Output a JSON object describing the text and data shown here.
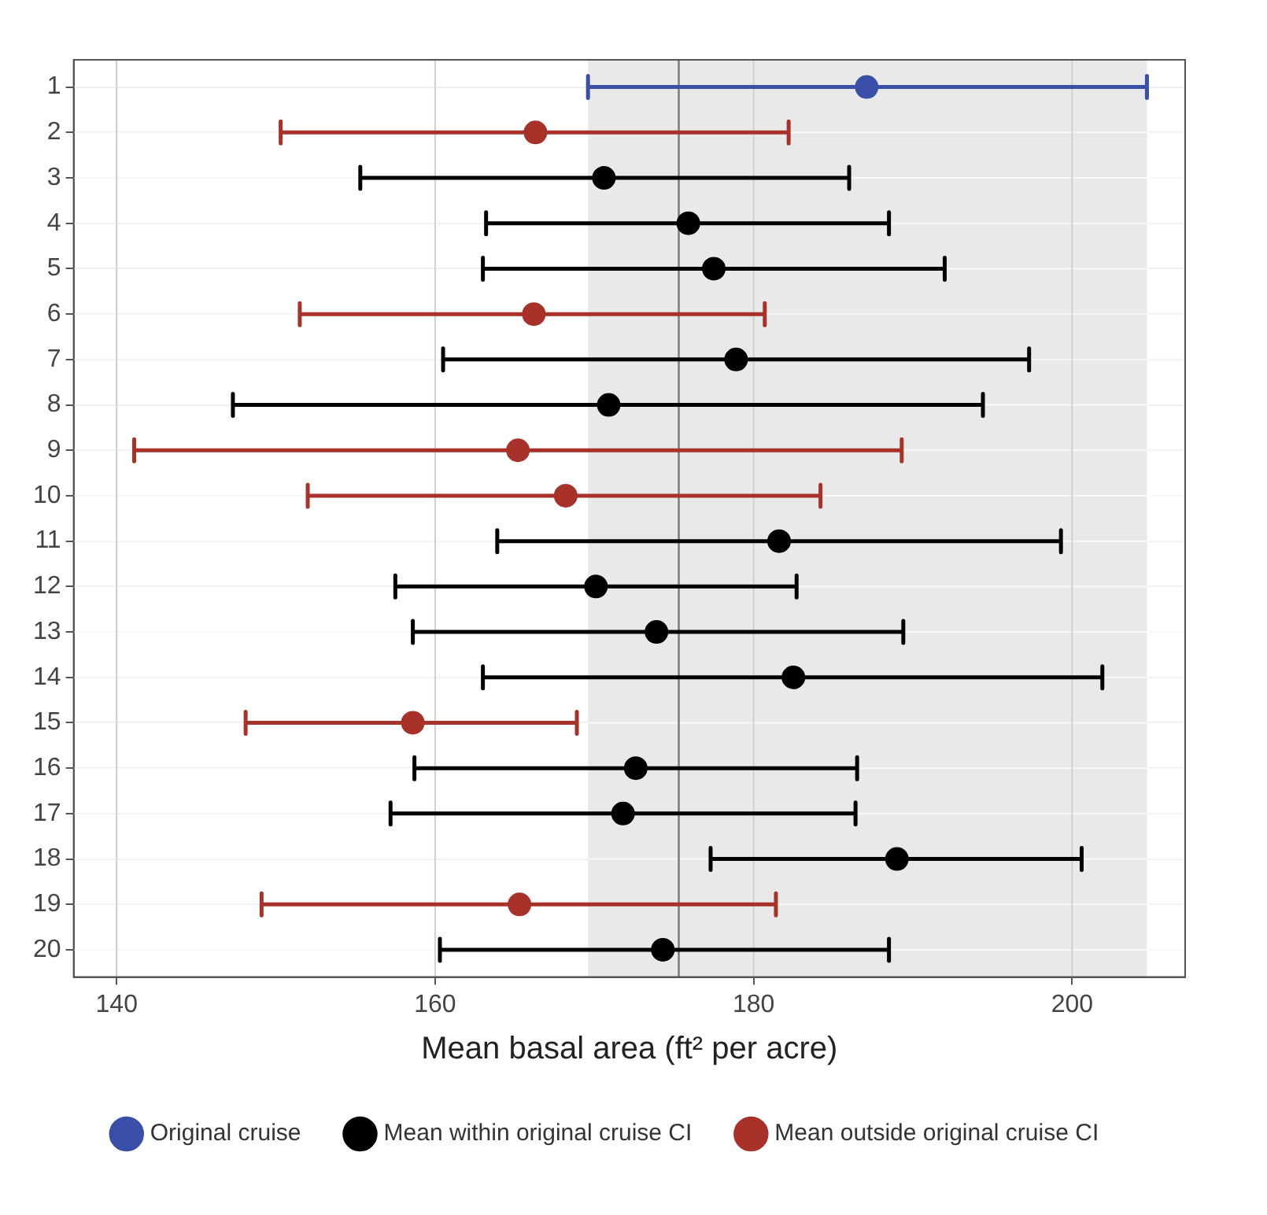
{
  "chart_data": {
    "type": "scatter",
    "orientation": "horizontal",
    "xlabel": "Mean basal area (ft² per acre)",
    "categories": [
      "1",
      "2",
      "3",
      "4",
      "5",
      "6",
      "7",
      "8",
      "9",
      "10",
      "11",
      "12",
      "13",
      "14",
      "15",
      "16",
      "17",
      "18",
      "19",
      "20"
    ],
    "xlim": [
      137.3,
      207.1
    ],
    "xticks": [
      140,
      160,
      180,
      200
    ],
    "grid": true,
    "legend": "bottom",
    "marker": "circle",
    "bands": [
      {
        "axis": "x",
        "from": 169.6,
        "to": 204.7,
        "color": "#e9e9e9"
      }
    ],
    "ref_lines": [
      {
        "axis": "x",
        "value": 175.3,
        "color": "#777777"
      }
    ],
    "series": [
      {
        "name": "Original cruise",
        "color": "#3a4fa8",
        "values": [
          187.1,
          null,
          null,
          null,
          null,
          null,
          null,
          null,
          null,
          null,
          null,
          null,
          null,
          null,
          null,
          null,
          null,
          null,
          null,
          null
        ],
        "errors": [
          [
            169.6,
            204.7
          ],
          null,
          null,
          null,
          null,
          null,
          null,
          null,
          null,
          null,
          null,
          null,
          null,
          null,
          null,
          null,
          null,
          null,
          null,
          null
        ]
      },
      {
        "name": "Mean within original cruise CI",
        "color": "#000000",
        "values": [
          null,
          null,
          170.6,
          175.9,
          177.5,
          null,
          178.9,
          170.9,
          null,
          null,
          181.6,
          170.1,
          173.9,
          182.5,
          null,
          172.6,
          171.8,
          189.0,
          null,
          174.3
        ],
        "errors": [
          null,
          null,
          [
            155.3,
            186.0
          ],
          [
            163.2,
            188.5
          ],
          [
            163.0,
            192.0
          ],
          null,
          [
            160.5,
            197.3
          ],
          [
            147.3,
            194.4
          ],
          null,
          null,
          [
            163.9,
            199.3
          ],
          [
            157.5,
            182.7
          ],
          [
            158.6,
            189.4
          ],
          [
            163.0,
            201.9
          ],
          null,
          [
            158.7,
            186.5
          ],
          [
            157.2,
            186.4
          ],
          [
            177.3,
            200.6
          ],
          null,
          [
            160.3,
            188.5
          ]
        ]
      },
      {
        "name": "Mean outside original cruise CI",
        "color": "#a8322a",
        "values": [
          null,
          166.3,
          null,
          null,
          null,
          166.2,
          null,
          null,
          165.2,
          168.2,
          null,
          null,
          null,
          null,
          158.6,
          null,
          null,
          null,
          165.3,
          null
        ],
        "errors": [
          null,
          [
            150.3,
            182.2
          ],
          null,
          null,
          null,
          [
            151.5,
            180.7
          ],
          null,
          null,
          [
            141.1,
            189.3
          ],
          [
            152.0,
            184.2
          ],
          null,
          null,
          null,
          null,
          [
            148.1,
            168.9
          ],
          null,
          null,
          null,
          [
            149.1,
            181.4
          ],
          null
        ]
      }
    ]
  }
}
